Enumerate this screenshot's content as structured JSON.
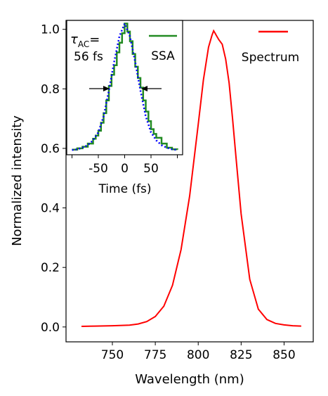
{
  "chart_data": [
    {
      "type": "line",
      "xlabel": "Wavelength (nm)",
      "ylabel": "Normalized intensity",
      "xlim": [
        723,
        867
      ],
      "ylim": [
        -0.05,
        1.03
      ],
      "xticks": [
        "750",
        "775",
        "800",
        "825",
        "850"
      ],
      "yticks": [
        "0.0",
        "0.2",
        "0.4",
        "0.6",
        "0.8",
        "1.0"
      ],
      "legend_position": "top-right",
      "series": [
        {
          "name": "Spectrum",
          "color": "#ff0000",
          "x": [
            732,
            740,
            750,
            760,
            765,
            770,
            775,
            780,
            785,
            790,
            795,
            800,
            803,
            806,
            808,
            809,
            810,
            811,
            812,
            814,
            816,
            818,
            820,
            822,
            825,
            830,
            835,
            840,
            845,
            850,
            855,
            860
          ],
          "y": [
            0.002,
            0.003,
            0.004,
            0.006,
            0.01,
            0.018,
            0.035,
            0.07,
            0.14,
            0.26,
            0.44,
            0.68,
            0.83,
            0.94,
            0.98,
            0.995,
            0.985,
            0.975,
            0.965,
            0.95,
            0.9,
            0.82,
            0.7,
            0.57,
            0.38,
            0.16,
            0.06,
            0.025,
            0.012,
            0.007,
            0.004,
            0.003
          ]
        }
      ]
    },
    {
      "type": "line",
      "xlabel": "Time (fs)",
      "ylabel": "",
      "xlim": [
        -110,
        110
      ],
      "ylim": [
        0.59,
        1.01
      ],
      "xticks": [
        "-50",
        "0",
        "50"
      ],
      "annotation_line1": "=",
      "annotation_line2": "56 fs",
      "tau_symbol": "τ",
      "tau_subscript": "AC",
      "legend_position": "top-right",
      "series": [
        {
          "name": "SSA",
          "color": "#228b22",
          "style": "step",
          "x": [
            -100,
            -90,
            -80,
            -70,
            -60,
            -55,
            -50,
            -45,
            -40,
            -35,
            -30,
            -25,
            -20,
            -15,
            -10,
            -5,
            0,
            5,
            10,
            15,
            20,
            25,
            30,
            35,
            40,
            45,
            50,
            55,
            60,
            70,
            80,
            90,
            100
          ],
          "y": [
            0.606,
            0.61,
            0.615,
            0.625,
            0.64,
            0.65,
            0.665,
            0.69,
            0.72,
            0.76,
            0.805,
            0.84,
            0.87,
            0.91,
            0.94,
            0.97,
            1.0,
            0.975,
            0.945,
            0.905,
            0.865,
            0.83,
            0.8,
            0.76,
            0.725,
            0.695,
            0.67,
            0.655,
            0.643,
            0.625,
            0.612,
            0.607,
            0.606
          ]
        },
        {
          "name": "",
          "color": "#0000ff",
          "style": "dotted",
          "x": [
            -100,
            -90,
            -80,
            -70,
            -60,
            -50,
            -40,
            -30,
            -20,
            -10,
            0,
            10,
            20,
            30,
            40,
            50,
            60,
            70,
            80,
            90,
            100
          ],
          "y": [
            0.605,
            0.607,
            0.612,
            0.62,
            0.635,
            0.66,
            0.71,
            0.79,
            0.88,
            0.96,
            1.0,
            0.96,
            0.88,
            0.79,
            0.71,
            0.66,
            0.635,
            0.62,
            0.612,
            0.607,
            0.605
          ]
        }
      ]
    }
  ]
}
